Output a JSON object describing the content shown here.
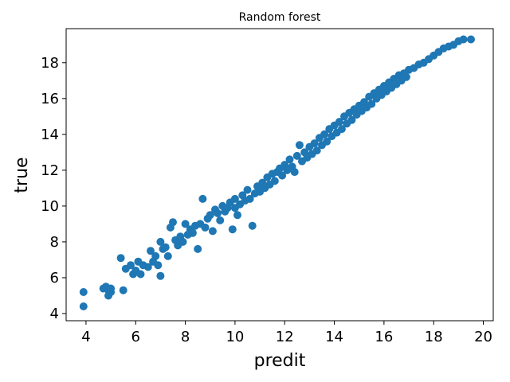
{
  "chart_data": {
    "type": "scatter",
    "title": "Random forest",
    "xlabel": "predit",
    "ylabel": "true",
    "xlim": [
      3.2,
      20.4
    ],
    "ylim": [
      3.6,
      19.9
    ],
    "xticks": [
      4,
      6,
      8,
      10,
      12,
      14,
      16,
      18,
      20
    ],
    "yticks": [
      4,
      6,
      8,
      10,
      12,
      14,
      16,
      18
    ],
    "grid": false,
    "legend": "none",
    "marker_color": "#1f77b4",
    "series": [
      {
        "points": [
          [
            3.9,
            4.4
          ],
          [
            3.9,
            5.2
          ],
          [
            4.7,
            5.4
          ],
          [
            4.8,
            5.5
          ],
          [
            4.9,
            5.3
          ],
          [
            4.9,
            5.0
          ],
          [
            5.0,
            5.4
          ],
          [
            5.0,
            5.2
          ],
          [
            5.4,
            7.1
          ],
          [
            5.5,
            5.3
          ],
          [
            5.6,
            6.5
          ],
          [
            5.8,
            6.7
          ],
          [
            5.9,
            6.2
          ],
          [
            6.0,
            6.4
          ],
          [
            6.1,
            6.9
          ],
          [
            6.2,
            6.2
          ],
          [
            6.3,
            6.7
          ],
          [
            6.5,
            6.6
          ],
          [
            6.6,
            7.5
          ],
          [
            6.7,
            6.9
          ],
          [
            6.8,
            7.2
          ],
          [
            6.9,
            6.7
          ],
          [
            7.0,
            6.1
          ],
          [
            7.0,
            8.0
          ],
          [
            7.1,
            7.6
          ],
          [
            7.2,
            7.7
          ],
          [
            7.3,
            7.2
          ],
          [
            7.4,
            8.8
          ],
          [
            7.5,
            9.1
          ],
          [
            7.6,
            8.1
          ],
          [
            7.7,
            7.8
          ],
          [
            7.8,
            8.3
          ],
          [
            7.9,
            8.0
          ],
          [
            8.0,
            9.0
          ],
          [
            8.1,
            8.4
          ],
          [
            8.2,
            8.7
          ],
          [
            8.3,
            8.5
          ],
          [
            8.4,
            8.9
          ],
          [
            8.5,
            7.6
          ],
          [
            8.6,
            9.0
          ],
          [
            8.7,
            10.4
          ],
          [
            8.8,
            8.8
          ],
          [
            8.9,
            9.3
          ],
          [
            9.0,
            9.5
          ],
          [
            9.1,
            8.6
          ],
          [
            9.2,
            9.8
          ],
          [
            9.3,
            9.6
          ],
          [
            9.4,
            9.2
          ],
          [
            9.5,
            10.0
          ],
          [
            9.6,
            9.7
          ],
          [
            9.7,
            9.9
          ],
          [
            9.8,
            10.2
          ],
          [
            9.9,
            8.7
          ],
          [
            10.0,
            10.4
          ],
          [
            10.0,
            9.9
          ],
          [
            10.1,
            9.5
          ],
          [
            10.2,
            10.1
          ],
          [
            10.3,
            10.6
          ],
          [
            10.4,
            10.3
          ],
          [
            10.5,
            10.9
          ],
          [
            10.6,
            10.4
          ],
          [
            10.7,
            8.9
          ],
          [
            10.8,
            10.7
          ],
          [
            10.9,
            11.1
          ],
          [
            11.0,
            10.8
          ],
          [
            11.1,
            11.3
          ],
          [
            11.2,
            11.0
          ],
          [
            11.3,
            11.6
          ],
          [
            11.4,
            11.2
          ],
          [
            11.5,
            11.8
          ],
          [
            11.6,
            11.4
          ],
          [
            11.7,
            11.9
          ],
          [
            11.8,
            12.1
          ],
          [
            11.9,
            11.7
          ],
          [
            12.0,
            12.3
          ],
          [
            12.1,
            12.0
          ],
          [
            12.2,
            12.6
          ],
          [
            12.3,
            12.2
          ],
          [
            12.4,
            11.9
          ],
          [
            12.5,
            12.8
          ],
          [
            12.6,
            13.4
          ],
          [
            12.7,
            12.5
          ],
          [
            12.8,
            13.0
          ],
          [
            12.9,
            12.7
          ],
          [
            13.0,
            13.3
          ],
          [
            13.1,
            12.9
          ],
          [
            13.2,
            13.5
          ],
          [
            13.3,
            13.1
          ],
          [
            13.4,
            13.8
          ],
          [
            13.5,
            13.4
          ],
          [
            13.6,
            14.0
          ],
          [
            13.7,
            13.6
          ],
          [
            13.8,
            14.3
          ],
          [
            13.9,
            13.9
          ],
          [
            14.0,
            14.5
          ],
          [
            14.1,
            14.1
          ],
          [
            14.2,
            14.7
          ],
          [
            14.3,
            14.3
          ],
          [
            14.4,
            15.0
          ],
          [
            14.5,
            14.6
          ],
          [
            14.6,
            15.2
          ],
          [
            14.7,
            14.8
          ],
          [
            14.8,
            15.4
          ],
          [
            14.9,
            15.1
          ],
          [
            15.0,
            15.6
          ],
          [
            15.1,
            15.3
          ],
          [
            15.2,
            15.8
          ],
          [
            15.3,
            15.5
          ],
          [
            15.4,
            16.1
          ],
          [
            15.5,
            15.7
          ],
          [
            15.6,
            16.3
          ],
          [
            15.7,
            16.0
          ],
          [
            15.8,
            16.5
          ],
          [
            15.9,
            16.2
          ],
          [
            16.0,
            16.7
          ],
          [
            16.1,
            16.4
          ],
          [
            16.2,
            16.9
          ],
          [
            16.3,
            16.6
          ],
          [
            16.4,
            17.1
          ],
          [
            16.5,
            16.8
          ],
          [
            16.6,
            17.3
          ],
          [
            16.7,
            17.0
          ],
          [
            16.8,
            17.4
          ],
          [
            16.9,
            17.2
          ],
          [
            17.0,
            17.6
          ],
          [
            17.2,
            17.7
          ],
          [
            17.4,
            17.9
          ],
          [
            17.6,
            18.0
          ],
          [
            17.8,
            18.2
          ],
          [
            18.0,
            18.4
          ],
          [
            18.2,
            18.6
          ],
          [
            18.4,
            18.8
          ],
          [
            18.6,
            18.9
          ],
          [
            18.8,
            19.0
          ],
          [
            19.0,
            19.2
          ],
          [
            19.2,
            19.3
          ],
          [
            19.5,
            19.3
          ]
        ]
      }
    ]
  }
}
